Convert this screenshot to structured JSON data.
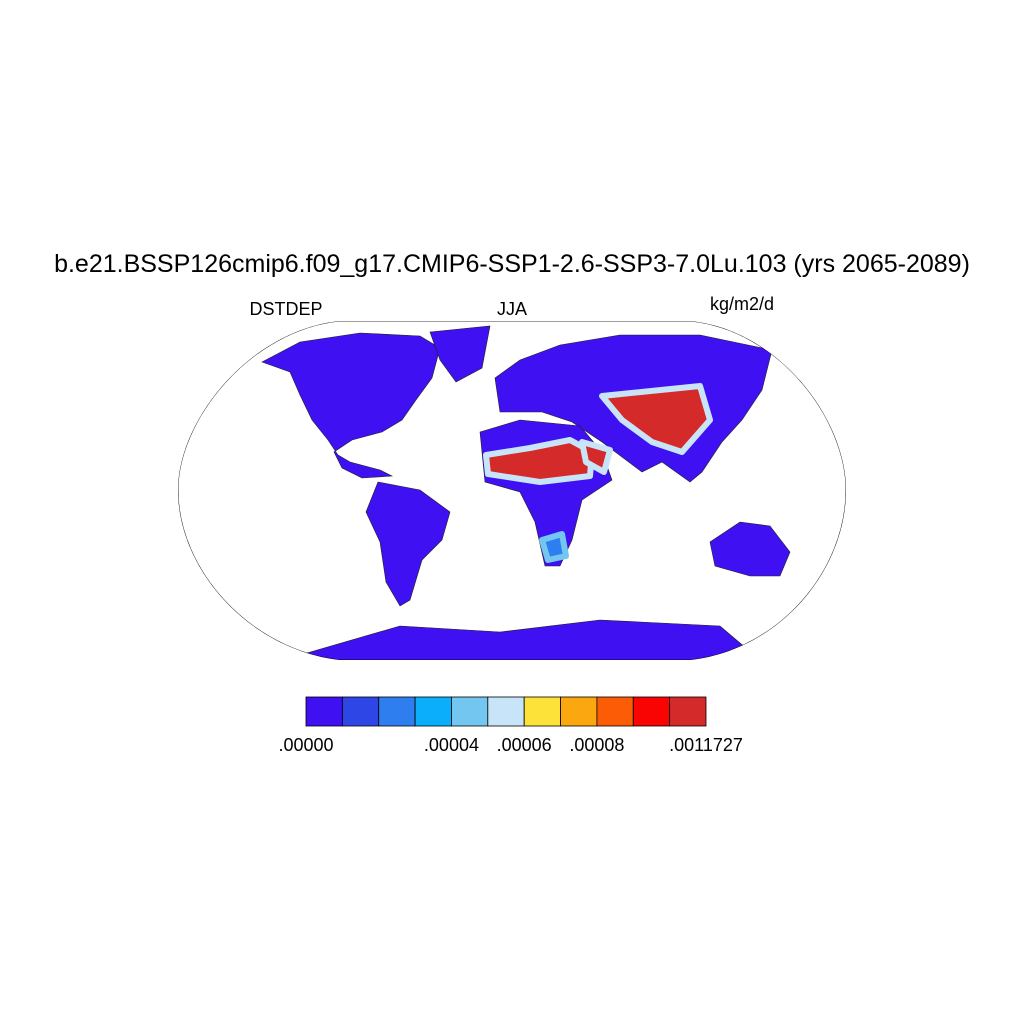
{
  "title": "b.e21.BSSP126cmip6.f09_g17.CMIP6-SSP1-2.6-SSP3-7.0Lu.103 (yrs 2065-2089)",
  "left_label": "DSTDEP",
  "center_label": "JJA",
  "right_label": "kg/m2/d",
  "colorbar": {
    "colors": [
      "#3f10f2",
      "#2f46e6",
      "#2e7ef0",
      "#0aaefa",
      "#72c6f0",
      "#c8e4f8",
      "#fde23a",
      "#fba70f",
      "#fb5c05",
      "#f90303",
      "#d42a2a"
    ],
    "labels": [
      ".00000",
      null,
      null,
      null,
      ".00004",
      null,
      ".00006",
      null,
      ".00008",
      null,
      null,
      ".0011727"
    ]
  }
}
